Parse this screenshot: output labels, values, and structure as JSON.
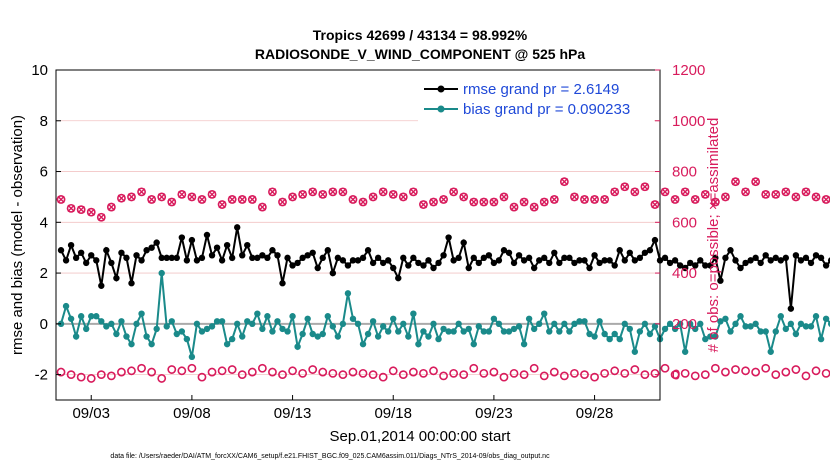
{
  "chart_data": {
    "type": "line",
    "title_line1": "Tropics 42699 / 43134 = 98.992%",
    "title_line2": "RADIOSONDE_V_WIND_COMPONENT @ 525 hPa",
    "xlabel": "Sep.01,2014 00:00:00 start",
    "ylabel": "rmse and bias (model - observation)",
    "y2label": "# of obs: o=possible; ×=assimilated",
    "footnote": "data file: /Users/raeder/DAI/ATM_forcXX/CAM6_setup/f.e21.FHIST_BGC.f09_025.CAM6assim.011/Diags_NTrS_2014-09/obs_diag_output.nc",
    "xlim": [
      1.25,
      31.25
    ],
    "ylim": [
      -3,
      10
    ],
    "y2lim": [
      -100,
      1200
    ],
    "x_ticks": [
      3,
      8,
      13,
      18,
      23,
      28
    ],
    "x_tick_labels": [
      "09/03",
      "09/08",
      "09/13",
      "09/18",
      "09/23",
      "09/28"
    ],
    "y_ticks": [
      -2,
      0,
      2,
      4,
      6,
      8,
      10
    ],
    "y_tick_labels": [
      "-2",
      "0",
      "2",
      "4",
      "6",
      "8",
      "10"
    ],
    "y2_ticks": [
      0,
      200,
      400,
      600,
      800,
      1000,
      1200
    ],
    "y2_tick_labels": [
      "0",
      "200",
      "400",
      "600",
      "800",
      "1000",
      "1200"
    ],
    "legend": [
      {
        "label": "rmse grand pr = 2.6149",
        "color": "#000000"
      },
      {
        "label": "bias grand pr = 0.090233",
        "color": "#1a8a8a"
      }
    ],
    "legend_placement": "top-right",
    "colors": {
      "rmse": "#000000",
      "bias": "#1a8a8a",
      "obs": "#d81b5c",
      "zero_line": "#aaaaaa",
      "grid": "#f2c4c4"
    },
    "x_start": 1.5,
    "x_step": 0.25,
    "series": [
      {
        "name": "rmse",
        "axis": "left",
        "values": [
          2.9,
          2.5,
          3.1,
          2.6,
          2.8,
          2.4,
          2.7,
          2.5,
          1.5,
          2.9,
          2.4,
          1.8,
          2.8,
          2.6,
          1.6,
          2.7,
          2.5,
          2.9,
          3.0,
          3.2,
          2.6,
          2.6,
          2.6,
          2.6,
          3.4,
          2.5,
          3.3,
          2.5,
          2.6,
          3.5,
          2.7,
          3.0,
          2.5,
          3.1,
          2.6,
          3.8,
          2.7,
          3.1,
          2.6,
          2.6,
          2.7,
          2.6,
          2.9,
          2.7,
          1.6,
          2.6,
          2.3,
          2.4,
          2.6,
          2.7,
          2.8,
          2.2,
          2.6,
          2.9,
          2.0,
          2.6,
          2.5,
          2.3,
          2.5,
          2.5,
          2.6,
          2.9,
          2.4,
          2.6,
          2.4,
          2.5,
          2.2,
          1.8,
          2.6,
          2.3,
          2.6,
          2.4,
          2.3,
          2.5,
          2.2,
          2.4,
          2.7,
          3.4,
          2.5,
          2.6,
          3.2,
          2.2,
          2.6,
          2.4,
          2.6,
          2.7,
          2.4,
          2.5,
          2.9,
          2.8,
          2.4,
          2.7,
          2.5,
          2.6,
          2.2,
          2.5,
          2.6,
          2.4,
          2.8,
          2.4,
          2.6,
          2.6,
          2.4,
          2.5,
          2.5,
          2.2,
          2.7,
          2.4,
          2.5,
          2.5,
          2.3,
          2.9,
          2.5,
          2.8,
          2.5,
          2.6,
          2.8,
          2.9,
          3.3,
          2.5,
          2.6,
          2.4,
          2.5,
          2.3,
          2.2,
          2.4,
          2.3,
          2.5,
          2.3,
          2.3,
          2.6,
          1.7,
          2.6,
          2.9,
          2.5,
          2.2,
          2.4,
          2.5,
          2.6,
          2.4,
          2.7,
          2.5,
          2.6,
          2.5,
          2.6,
          0.6,
          2.7,
          2.5,
          2.6,
          2.4,
          2.7,
          2.6,
          2.3,
          2.5,
          2.2,
          2.5,
          2.0,
          1.7
        ]
      },
      {
        "name": "bias",
        "axis": "left",
        "values": [
          0.0,
          0.7,
          0.2,
          -0.5,
          0.3,
          -0.2,
          0.3,
          0.3,
          0.1,
          -0.1,
          0.0,
          -0.4,
          0.1,
          -0.5,
          -0.8,
          0.0,
          0.4,
          -0.5,
          -0.8,
          -0.2,
          2.0,
          -0.1,
          0.1,
          -0.4,
          -0.3,
          -0.6,
          -1.3,
          0.0,
          -0.3,
          -0.2,
          -0.1,
          0.1,
          0.1,
          -0.8,
          -0.6,
          0.0,
          -0.5,
          0.1,
          0.0,
          0.4,
          -0.2,
          0.3,
          -0.3,
          0.1,
          -0.2,
          -0.3,
          0.3,
          -0.9,
          -0.4,
          0.2,
          -0.4,
          -0.5,
          -0.4,
          0.3,
          -0.1,
          -0.5,
          0.0,
          1.2,
          0.2,
          0.0,
          -0.8,
          -0.4,
          0.1,
          -0.5,
          -0.1,
          -0.3,
          0.2,
          -0.3,
          0.0,
          -0.5,
          0.4,
          -0.8,
          -0.3,
          -0.5,
          0.0,
          -0.6,
          -0.2,
          -0.3,
          -0.3,
          0.0,
          -0.3,
          -0.2,
          -0.8,
          -0.1,
          -0.3,
          -0.3,
          0.2,
          0.0,
          -0.3,
          -0.3,
          -0.2,
          -0.1,
          -0.8,
          0.2,
          -0.2,
          0.0,
          0.4,
          -0.3,
          0.0,
          -0.3,
          0.0,
          -0.3,
          0.0,
          0.1,
          0.1,
          -0.4,
          -0.5,
          0.1,
          -0.4,
          -0.6,
          -0.4,
          -0.6,
          0.0,
          -0.2,
          -1.1,
          -0.3,
          0.0,
          -0.4,
          -0.1,
          -0.6,
          -0.2,
          0.0,
          -0.2,
          0.0,
          -1.1,
          0.0,
          -0.2,
          0.0,
          -0.6,
          -0.5,
          -0.5,
          0.1,
          0.2,
          -0.3,
          0.0,
          0.3,
          -0.1,
          -0.1,
          0.0,
          -0.3,
          -0.3,
          -1.1,
          -0.3,
          0.3,
          -0.2,
          0.0,
          -0.4,
          0.0,
          -0.1,
          -0.1,
          0.3,
          -0.6,
          0.2,
          0.0,
          0.2,
          0.4,
          0.4,
          0.6
        ]
      },
      {
        "name": "possible_obs",
        "axis": "right",
        "marker": "o",
        "values": [
          690,
          675,
          655,
          680,
          650,
          670,
          640,
          665,
          620,
          650,
          660,
          670,
          695,
          680,
          700,
          690,
          720,
          705,
          690,
          760,
          700,
          630,
          680,
          700,
          710,
          695,
          700,
          710,
          690,
          700,
          710,
          700,
          670,
          700,
          690,
          700,
          690,
          670,
          690,
          680,
          660,
          690,
          720,
          700,
          680,
          720,
          700,
          720,
          710,
          740,
          720,
          730,
          710,
          700,
          720,
          700,
          720,
          700,
          690,
          680,
          680,
          690,
          700,
          690,
          720,
          700,
          710,
          690,
          700,
          670,
          720,
          700,
          670,
          690,
          680,
          680,
          690,
          700,
          720,
          650,
          700,
          690,
          680,
          670,
          680,
          700,
          680,
          690,
          700,
          680,
          660,
          700,
          680,
          570,
          660,
          670,
          680,
          680,
          690,
          720,
          760,
          690,
          700,
          760,
          690,
          680,
          690,
          660,
          690,
          720,
          720,
          700,
          740,
          730,
          720,
          700,
          740,
          720,
          670,
          730,
          720,
          760,
          690,
          740,
          720,
          680,
          690,
          700,
          710,
          690,
          680,
          720,
          700,
          740,
          760,
          740,
          720,
          730,
          760,
          760,
          710,
          740,
          710,
          690,
          720,
          710,
          700,
          690,
          720,
          730,
          700,
          710,
          690,
          720,
          690,
          700
        ]
      },
      {
        "name": "assimilated_obs",
        "axis": "right",
        "marker": "x",
        "values": [
          690,
          675,
          655,
          680,
          650,
          670,
          640,
          665,
          620,
          650,
          660,
          670,
          695,
          680,
          700,
          690,
          720,
          705,
          690,
          760,
          700,
          630,
          680,
          700,
          710,
          695,
          700,
          710,
          690,
          700,
          710,
          700,
          670,
          700,
          690,
          700,
          690,
          670,
          690,
          680,
          660,
          690,
          720,
          700,
          680,
          720,
          700,
          720,
          710,
          740,
          720,
          730,
          710,
          700,
          720,
          700,
          720,
          700,
          690,
          680,
          680,
          690,
          700,
          690,
          720,
          700,
          710,
          690,
          700,
          670,
          720,
          700,
          670,
          690,
          680,
          680,
          690,
          700,
          720,
          650,
          700,
          690,
          680,
          670,
          680,
          700,
          680,
          690,
          700,
          680,
          660,
          700,
          680,
          570,
          660,
          670,
          680,
          680,
          690,
          720,
          760,
          690,
          700,
          760,
          690,
          680,
          690,
          660,
          690,
          720,
          720,
          700,
          740,
          730,
          720,
          700,
          740,
          720,
          670,
          730,
          720,
          760,
          690,
          740,
          720,
          680,
          690,
          700,
          710,
          690,
          680,
          720,
          700,
          740,
          760,
          740,
          720,
          730,
          760,
          760,
          710,
          740,
          710,
          690,
          720,
          710,
          700,
          690,
          720,
          730,
          700,
          710,
          690,
          720,
          690,
          700
        ]
      },
      {
        "name": "low_obs",
        "axis": "right",
        "marker": "o",
        "values": [
          10,
          -20,
          0,
          15,
          -10,
          5,
          -15,
          10,
          0,
          20,
          -5,
          5,
          10,
          -10,
          15,
          0,
          25,
          -5,
          10,
          5,
          -15,
          5,
          20,
          -10,
          15,
          0,
          25,
          5,
          -10,
          0,
          10,
          25,
          15,
          -5,
          20,
          5,
          0,
          15,
          10,
          -10,
          25,
          5,
          10,
          20,
          0,
          -5,
          15,
          10,
          5,
          -15,
          20,
          0,
          10,
          15,
          5,
          25,
          0,
          -5,
          10,
          20,
          5,
          15,
          0,
          10,
          -10,
          5,
          15,
          25,
          0,
          -5,
          10,
          20,
          5,
          0,
          15,
          10,
          -5,
          20,
          5,
          15,
          0,
          10,
          25,
          -5,
          5,
          15,
          10,
          0,
          -10,
          20,
          5,
          15,
          0,
          10,
          25,
          5,
          -5,
          15,
          10,
          0,
          -5,
          20,
          5,
          15,
          0,
          10,
          -10,
          25,
          5,
          0,
          15,
          10,
          5,
          -5,
          20,
          10,
          0,
          15,
          5,
          -10,
          25,
          10,
          0,
          15,
          5,
          20,
          -5,
          10,
          0,
          15,
          25,
          5,
          10,
          -5,
          20,
          0,
          15,
          5,
          10,
          -10,
          25,
          5,
          0,
          15,
          10,
          5,
          20,
          0,
          -5,
          10,
          15,
          0,
          5,
          -10,
          -20,
          -30
        ]
      }
    ]
  }
}
